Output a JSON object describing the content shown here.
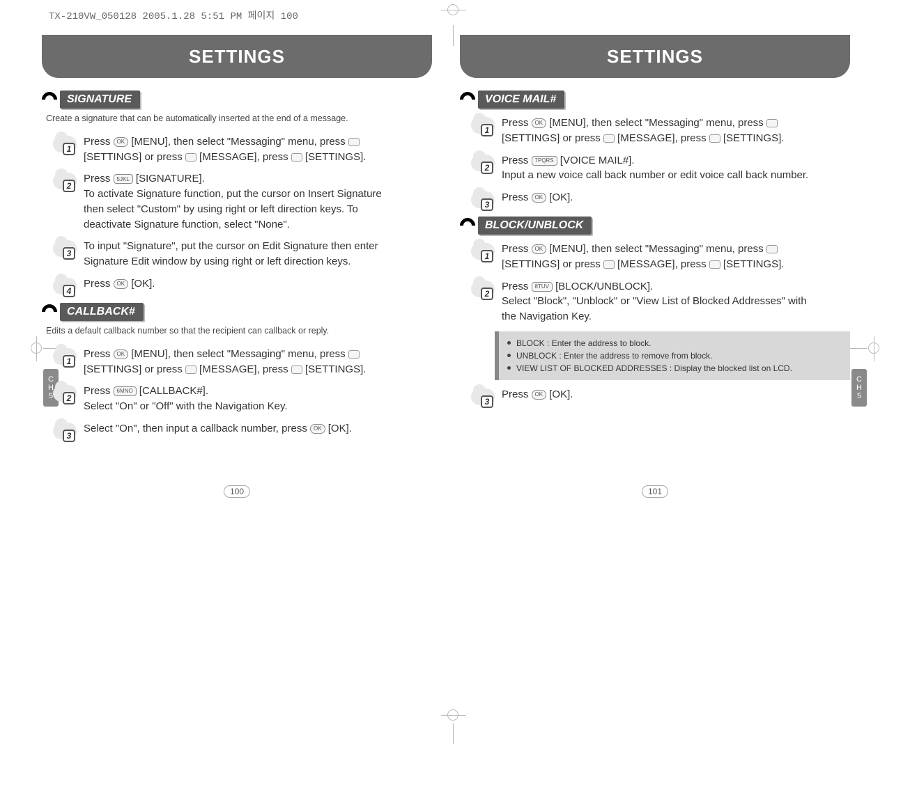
{
  "filepath": "TX-210VW_050128  2005.1.28 5:51 PM  페이지 100",
  "side_tab": {
    "line1": "C",
    "line2": "H",
    "line3": "5"
  },
  "left": {
    "header": "SETTINGS",
    "page_number": "100",
    "sections": [
      {
        "label": "SIGNATURE",
        "intro": "Create a signature that can be automatically inserted at the end of a message.",
        "steps": [
          {
            "n": "1",
            "html": "Press <span class='key-oval'>OK</span> [MENU], then select \"Messaging\" menu, press <span class='key-arrow'></span> [SETTINGS] or press <span class='key-arrow'></span> [MESSAGE], press <span class='key-arrow'></span> [SETTINGS]."
          },
          {
            "n": "2",
            "html": "Press <span class='key-rect'>5JKL</span> [SIGNATURE].<br>To activate Signature function, put the cursor on Insert Signature then select \"Custom\" by using right or left direction keys. To deactivate Signature function, select \"None\"."
          },
          {
            "n": "3",
            "html": "To input \"Signature\", put the cursor on Edit Signature then enter Signature Edit window by using right or left direction keys."
          },
          {
            "n": "4",
            "html": "Press <span class='key-oval'>OK</span> [OK]."
          }
        ]
      },
      {
        "label": "CALLBACK#",
        "intro": "Edits a default callback number so that the recipient can callback or reply.",
        "steps": [
          {
            "n": "1",
            "html": "Press <span class='key-oval'>OK</span> [MENU], then select \"Messaging\" menu, press <span class='key-arrow'></span> [SETTINGS] or press <span class='key-arrow'></span> [MESSAGE], press <span class='key-arrow'></span> [SETTINGS]."
          },
          {
            "n": "2",
            "html": "Press <span class='key-rect'>6MNO</span> [CALLBACK#].<br>Select \"On\" or \"Off\" with the Navigation Key."
          },
          {
            "n": "3",
            "html": "Select \"On\", then input a callback number, press <span class='key-oval'>OK</span> [OK]."
          }
        ]
      }
    ]
  },
  "right": {
    "header": "SETTINGS",
    "page_number": "101",
    "sections": [
      {
        "label": "VOICE MAIL#",
        "steps": [
          {
            "n": "1",
            "html": "Press <span class='key-oval'>OK</span> [MENU], then select \"Messaging\" menu, press <span class='key-arrow'></span> [SETTINGS] or press <span class='key-arrow'></span> [MESSAGE], press <span class='key-arrow'></span> [SETTINGS]."
          },
          {
            "n": "2",
            "html": "Press <span class='key-rect'>7PQRS</span> [VOICE MAIL#].<br>Input a new voice call back number or edit voice call back number."
          },
          {
            "n": "3",
            "html": "Press <span class='key-oval'>OK</span> [OK]."
          }
        ]
      },
      {
        "label": "BLOCK/UNBLOCK",
        "steps": [
          {
            "n": "1",
            "html": "Press <span class='key-oval'>OK</span> [MENU], then select \"Messaging\" menu, press <span class='key-arrow'></span> [SETTINGS] or press <span class='key-arrow'></span> [MESSAGE], press <span class='key-arrow'></span> [SETTINGS]."
          },
          {
            "n": "2",
            "html": "Press <span class='key-rect'>8TUV</span> [BLOCK/UNBLOCK].<br>Select \"Block\", \"Unblock\" or \"View List of Blocked Addresses\" with the Navigation Key."
          },
          {
            "n": "3",
            "html": "Press <span class='key-oval'>OK</span> [OK]."
          }
        ],
        "info": [
          "BLOCK : Enter the address to block.",
          "UNBLOCK : Enter the address to remove from block.",
          "VIEW LIST OF BLOCKED ADDRESSES : Display the blocked list on LCD."
        ],
        "info_after_step": 2
      }
    ]
  }
}
